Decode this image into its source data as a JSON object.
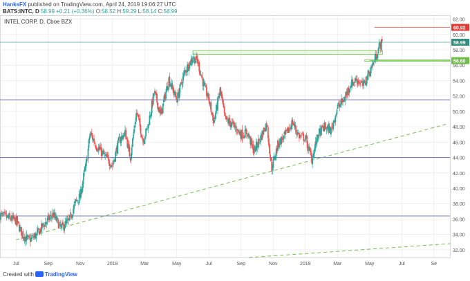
{
  "header": {
    "author": "HanksFX",
    "published": "published on TradingView.com, April 24, 2019 19:06:27 UTC",
    "symbol": "BATS:INTC, D",
    "last": "58.99",
    "change": "+0.21 (+0.36%)",
    "open_label": "O:",
    "open": "58.52",
    "high_label": "H:",
    "high": "59.29",
    "low_label": "L:",
    "low": "58.14",
    "close_label": "C:",
    "close": "58.99"
  },
  "footer": {
    "created_with": "Created with",
    "brand": "TradingView"
  },
  "colors": {
    "up": "#26a69a",
    "down": "#ef5350",
    "level": "#7b7bc9",
    "trend": "#6fbf4a",
    "grid": "#e6e6e6",
    "price_badge": "#2e8f7f",
    "red_badge": "#e53935",
    "green_badge": "#6fbf4a"
  },
  "chart_data": {
    "type": "candlestick",
    "title": "INTEL CORP, D, Cboe BZX",
    "ylim": [
      31,
      62.5
    ],
    "y_ticks": [
      "32.00",
      "34.00",
      "36.00",
      "38.00",
      "40.00",
      "42.00",
      "44.00",
      "46.00",
      "48.00",
      "50.00",
      "52.00",
      "54.00",
      "56.00",
      "58.00",
      "60.00",
      "62.00"
    ],
    "x_ticks": [
      "Jul",
      "Sep",
      "Nov",
      "2018",
      "Mar",
      "May",
      "Jul",
      "Sep",
      "Nov",
      "2019",
      "Mar",
      "May",
      "Jul",
      "Se"
    ],
    "x_tick_months": [
      0,
      2,
      4,
      6,
      8,
      10,
      12,
      14,
      16,
      18,
      20,
      22,
      24,
      26
    ],
    "x_range_months": [
      -1.0,
      27.0
    ],
    "horizontal_levels": [
      36.4,
      44.0,
      51.5
    ],
    "price_labels": [
      {
        "value": 60.92,
        "text": "60.92",
        "kind": "red"
      },
      {
        "value": 58.99,
        "text": "58.99",
        "kind": "price"
      },
      {
        "value": 56.6,
        "text": "56.60",
        "kind": "green"
      }
    ],
    "zones": [
      {
        "from_month": 11.0,
        "to_month": 22.8,
        "low": 57.4,
        "high": 57.9
      },
      {
        "from_month": 21.7,
        "to_month": 27.0,
        "low": 56.5,
        "high": 56.7
      }
    ],
    "trendlines": [
      {
        "from": [
          0.0,
          33.3
        ],
        "to": [
          26.9,
          48.4
        ]
      },
      {
        "from": [
          14.5,
          31.0
        ],
        "to": [
          27.0,
          32.8
        ]
      }
    ],
    "price_path": [
      [
        -1.0,
        36.5
      ],
      [
        0.0,
        35.8
      ],
      [
        0.4,
        34.0
      ],
      [
        0.8,
        33.2
      ],
      [
        1.3,
        34.0
      ],
      [
        1.8,
        35.5
      ],
      [
        2.3,
        36.6
      ],
      [
        2.8,
        34.8
      ],
      [
        3.3,
        35.8
      ],
      [
        3.7,
        38.2
      ],
      [
        4.0,
        39.0
      ],
      [
        4.2,
        41.5
      ],
      [
        4.4,
        43.5
      ],
      [
        4.6,
        47.2
      ],
      [
        5.0,
        45.5
      ],
      [
        5.5,
        44.2
      ],
      [
        6.0,
        43.0
      ],
      [
        6.4,
        46.2
      ],
      [
        6.8,
        47.2
      ],
      [
        7.1,
        44.0
      ],
      [
        7.5,
        50.0
      ],
      [
        7.9,
        46.2
      ],
      [
        8.2,
        48.0
      ],
      [
        8.6,
        52.5
      ],
      [
        9.0,
        49.5
      ],
      [
        9.5,
        54.2
      ],
      [
        10.0,
        51.5
      ],
      [
        10.5,
        55.2
      ],
      [
        11.0,
        57.0
      ],
      [
        11.3,
        56.5
      ],
      [
        11.7,
        53.2
      ],
      [
        12.0,
        51.5
      ],
      [
        12.3,
        48.6
      ],
      [
        12.7,
        52.8
      ],
      [
        13.0,
        49.0
      ],
      [
        13.5,
        48.2
      ],
      [
        14.0,
        47.0
      ],
      [
        14.4,
        47.2
      ],
      [
        14.8,
        44.8
      ],
      [
        15.2,
        46.5
      ],
      [
        15.6,
        48.5
      ],
      [
        15.9,
        42.5
      ],
      [
        16.3,
        45.8
      ],
      [
        16.8,
        47.0
      ],
      [
        17.2,
        48.6
      ],
      [
        17.6,
        46.8
      ],
      [
        18.0,
        46.5
      ],
      [
        18.4,
        43.8
      ],
      [
        18.8,
        47.0
      ],
      [
        19.2,
        48.0
      ],
      [
        19.6,
        47.5
      ],
      [
        20.0,
        50.5
      ],
      [
        20.4,
        51.5
      ],
      [
        20.8,
        53.5
      ],
      [
        21.2,
        54.2
      ],
      [
        21.6,
        53.3
      ],
      [
        22.0,
        55.2
      ],
      [
        22.3,
        56.6
      ],
      [
        22.6,
        58.5
      ],
      [
        22.8,
        58.99
      ]
    ]
  }
}
